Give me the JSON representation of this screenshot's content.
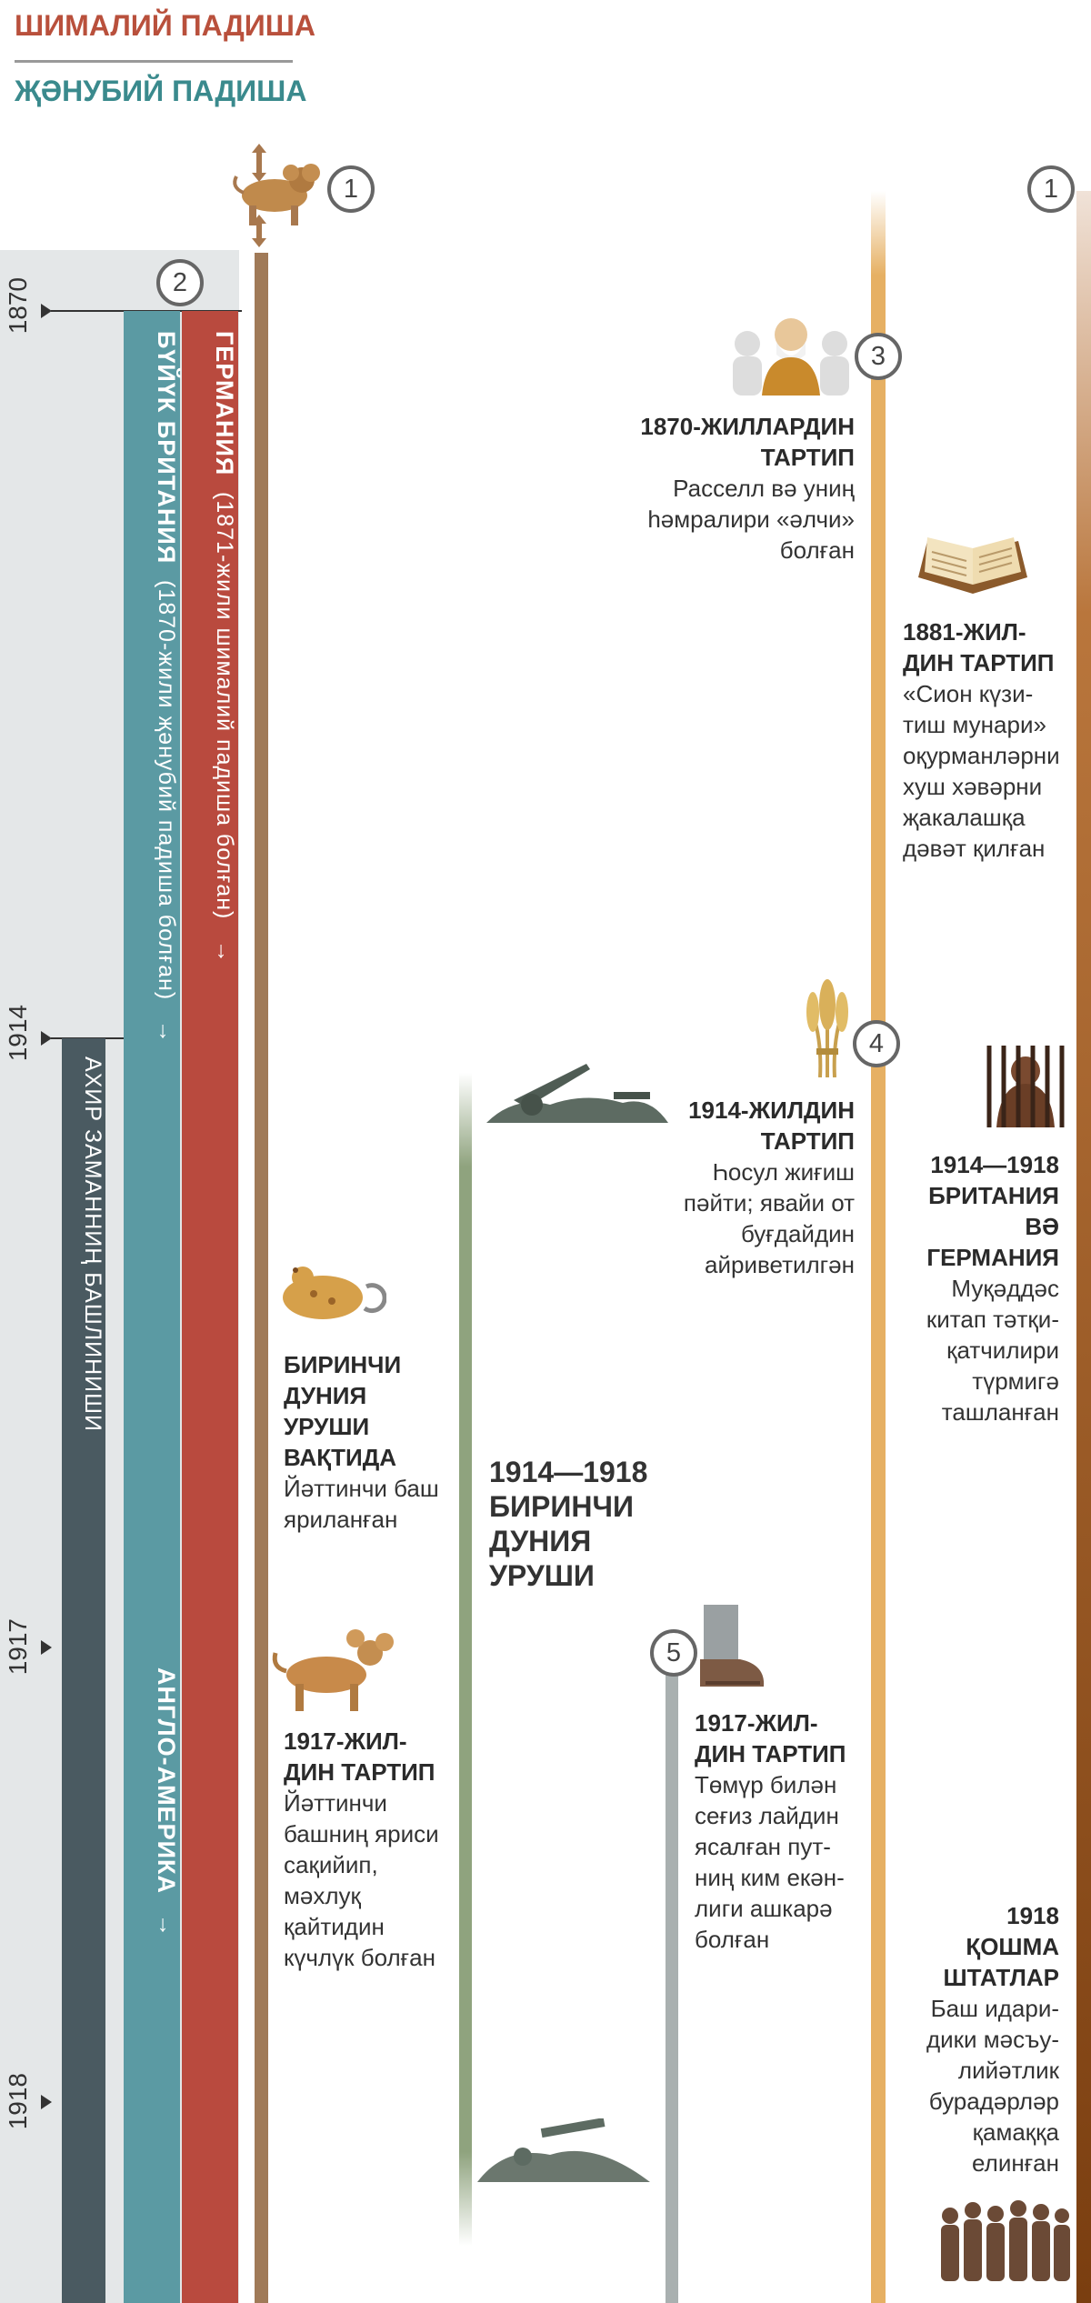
{
  "legend": {
    "north": "ШИМАЛИЙ ПАДИША",
    "south": "ҖӘНУБИЙ ПАДИША"
  },
  "years": [
    "1870",
    "1914",
    "1917",
    "1918"
  ],
  "badges": [
    "1",
    "1",
    "2",
    "3",
    "4",
    "5"
  ],
  "bands": {
    "germany_title": "ГЕРМАНИЯ",
    "germany_note": "(1871-жили шималий падиша болған)",
    "britain_title": "БҮЙҮК БРИТАНИЯ",
    "britain_note": "(1870-жили җәнубий падиша болған)",
    "anglo_america": "АНГЛО-АМЕРИКА",
    "end_times": "АХИР ЗАМАННИҢ БАШЛИНИШИ",
    "arrow": "→"
  },
  "events": {
    "e1870": {
      "title": "1870-ЖИЛЛАРДИН ТАРТИП",
      "text": "Расселл вә униң һәмралири «әлчи» болған"
    },
    "e1881": {
      "title": "1881-ЖИЛ-ДИН ТАРТИП",
      "text": "«Сион күзи-тиш мунари» оқурманләрни хуш хәвәрни җакалашқа дәвәт қилған"
    },
    "e1914": {
      "title": "1914-ЖИЛДИН ТАРТИП",
      "text": "Һосул жиғиш пәйти; явайи от буғдайдин айриветилгән"
    },
    "e1914_18": {
      "title": "1914—1918 БРИТАНИЯ ВӘ ГЕРМАНИЯ",
      "text": "Муқәддәс китап тәтқи-қатчилири түрмигә ташланған"
    },
    "ww1_during": {
      "title": "БИРИНЧИ ДУНИЯ УРУШИ ВАҚТИДА",
      "text": "Йәттинчи баш яриланған"
    },
    "ww1_label": "1914—1918 БИРИНЧИ ДУНИЯ УРУШИ",
    "e1917a": {
      "title": "1917-ЖИЛ-ДИН ТАРТИП",
      "text": "Йәттинчи башниң яриси сақийип, мәхлуқ қайтидин күчлүк болған"
    },
    "e1917b": {
      "title": "1917-ЖИЛ-ДИН ТАРТИП",
      "text": "Төмүр билән сеғиз лайдин ясалған пут-ниң ким екән-лиги ашкарә болған"
    },
    "e1918": {
      "title": "1918 ҚОШМА ШТАТЛАР",
      "text": "Баш идари-дики мәсъу-лийәтлик бурадәрләр қамаққа елинған"
    }
  },
  "colors": {
    "north": "#b9503c",
    "south": "#3a8a8d",
    "britain_band": "#5b9aa3",
    "germany_band": "#b94a3e",
    "end_times_band": "#4a5a61",
    "beast_line": "#a07a58",
    "war_line": "#8fa37e",
    "feet_line": "#a9b0b0",
    "gold_line": "#e6b063",
    "brown_line": "#7a3e10"
  },
  "icons": [
    "beast-icon",
    "russell-icon",
    "bible-icon",
    "wheat-icon",
    "prison-icon",
    "soldiers-icon",
    "wounded-beast-icon",
    "feet-icon",
    "men-group-icon"
  ]
}
